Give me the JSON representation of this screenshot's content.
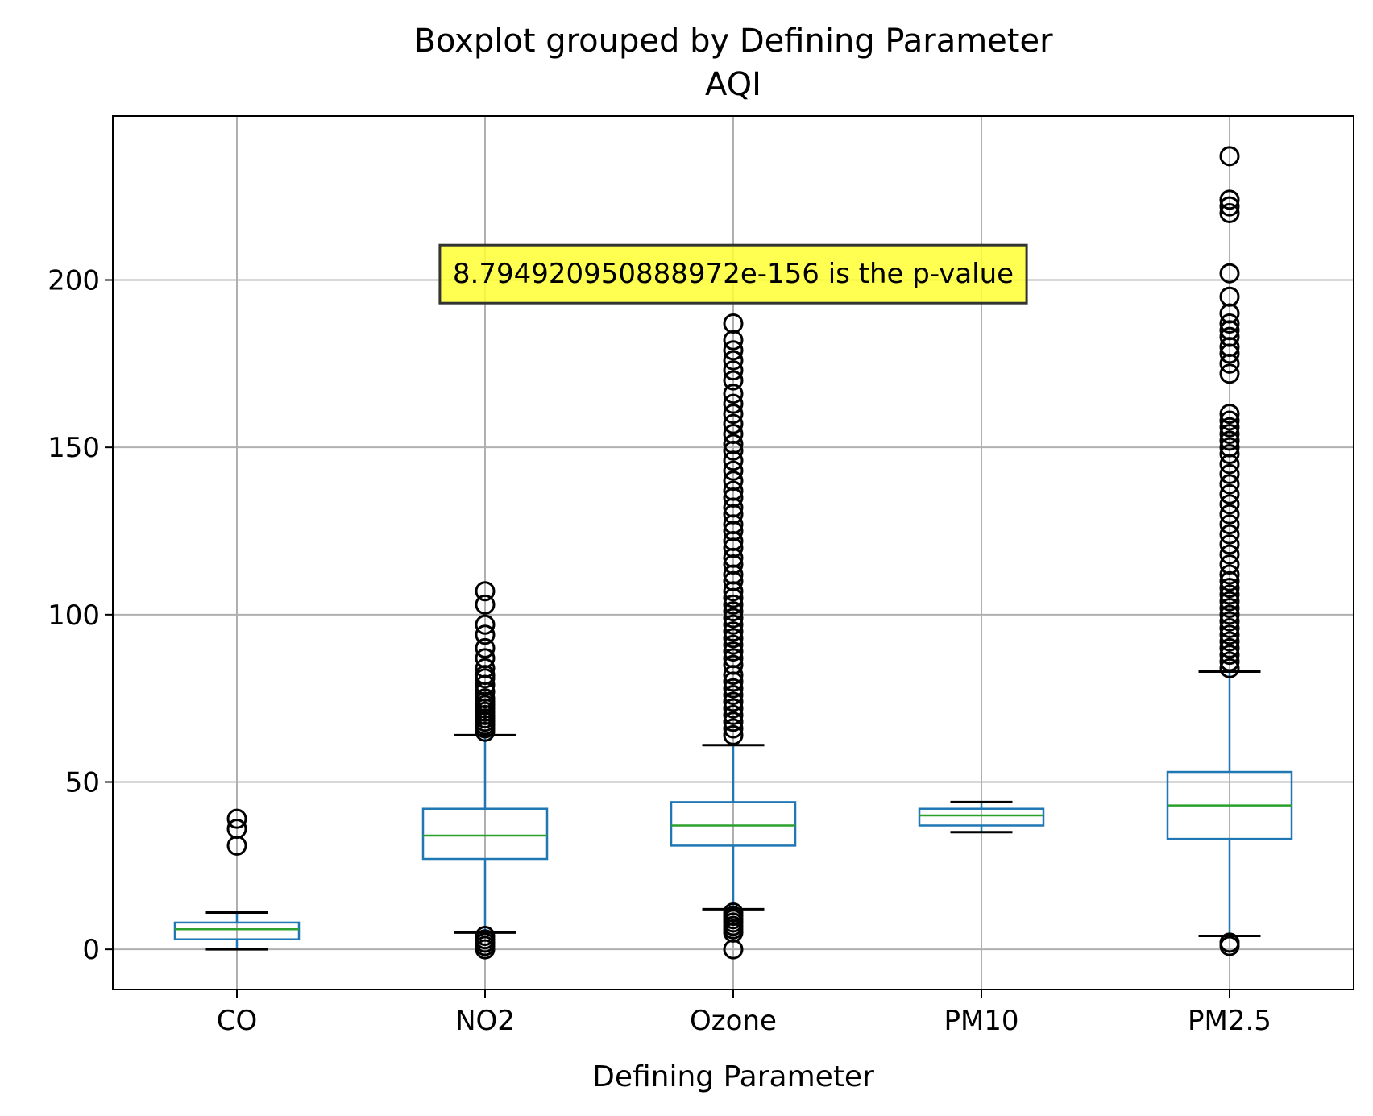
{
  "chart_data": {
    "type": "box",
    "suptitle": "Boxplot grouped by Defining Parameter",
    "title": "AQI",
    "xlabel": "Defining Parameter",
    "ylabel": "",
    "ylim": [
      -12,
      249
    ],
    "yticks": [
      0,
      50,
      100,
      150,
      200
    ],
    "grid": true,
    "categories": [
      "CO",
      "NO2",
      "Ozone",
      "PM10",
      "PM2.5"
    ],
    "boxes": [
      {
        "category": "CO",
        "whisker_low": 0,
        "q1": 3,
        "median": 6,
        "q3": 8,
        "whisker_high": 11,
        "outliers": [
          31,
          36,
          39
        ]
      },
      {
        "category": "NO2",
        "whisker_low": 5,
        "q1": 27,
        "median": 34,
        "q3": 42,
        "whisker_high": 64,
        "outliers": [
          0,
          1,
          2,
          3,
          4,
          65,
          66,
          67,
          68,
          69,
          70,
          71,
          72,
          73,
          74,
          75,
          77,
          79,
          81,
          82,
          84,
          87,
          90,
          94,
          97,
          103,
          107
        ]
      },
      {
        "category": "Ozone",
        "whisker_low": 12,
        "q1": 31,
        "median": 37,
        "q3": 44,
        "whisker_high": 61,
        "outliers": [
          0,
          5,
          6,
          7,
          8,
          9,
          10,
          11,
          64,
          66,
          68,
          70,
          72,
          74,
          76,
          78,
          80,
          82,
          85,
          87,
          89,
          91,
          93,
          95,
          97,
          99,
          101,
          103,
          105,
          107,
          110,
          112,
          115,
          117,
          120,
          122,
          125,
          127,
          130,
          132,
          135,
          137,
          140,
          143,
          146,
          149,
          151,
          154,
          157,
          160,
          163,
          166,
          170,
          173,
          176,
          179,
          182,
          187
        ]
      },
      {
        "category": "PM10",
        "whisker_low": 35,
        "q1": 37,
        "median": 40,
        "q3": 42,
        "whisker_high": 44,
        "outliers": []
      },
      {
        "category": "PM2.5",
        "whisker_low": 4,
        "q1": 33,
        "median": 43,
        "q3": 53,
        "whisker_high": 83,
        "outliers": [
          1,
          2,
          84,
          86,
          88,
          90,
          92,
          94,
          96,
          98,
          100,
          102,
          104,
          106,
          108,
          110,
          112,
          115,
          118,
          121,
          124,
          127,
          130,
          133,
          136,
          139,
          142,
          145,
          148,
          150,
          152,
          154,
          156,
          158,
          160,
          172,
          175,
          178,
          180,
          183,
          185,
          187,
          190,
          195,
          202,
          220,
          222,
          224,
          237
        ]
      }
    ],
    "annotation": {
      "text": "8.794920950888972e-156 is the p-value",
      "x_category_between": [
        "NO2",
        "PM10"
      ],
      "y": 202
    },
    "colors": {
      "box": "#1f77b4",
      "median": "#2ca02c",
      "whisker_cap": "#000000",
      "outlier": "#000000",
      "grid": "#b0b0b0",
      "annotation_fill": "#ffff33",
      "annotation_edge": "#333333"
    }
  }
}
